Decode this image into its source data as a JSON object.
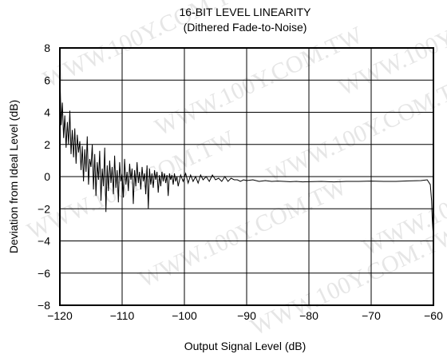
{
  "watermark": "WWW.100Y.COM.TW",
  "chart_data": {
    "type": "line",
    "title": "16-BIT LEVEL LINEARITY",
    "subtitle": "(Dithered Fade-to-Noise)",
    "xlabel": "Output Signal Level (dB)",
    "ylabel": "Deviation from Ideal Level (dB)",
    "xlim": [
      -120,
      -60
    ],
    "ylim": [
      -8,
      8
    ],
    "xticks": [
      -120,
      -110,
      -100,
      -90,
      -80,
      -70,
      -60
    ],
    "yticks": [
      -8,
      -6,
      -4,
      -2,
      0,
      2,
      4,
      6,
      8
    ],
    "xtick_labels": [
      "−120",
      "−110",
      "−100",
      "−90",
      "−80",
      "−70",
      "−60"
    ],
    "ytick_labels": [
      "−8",
      "−6",
      "−4",
      "−2",
      "0",
      "2",
      "4",
      "6",
      "8"
    ],
    "grid": true,
    "line_color": "#000000",
    "series": [
      {
        "x": [
          -120,
          -119.8,
          -119.6,
          -119.4,
          -119.2,
          -119,
          -118.8,
          -118.6,
          -118.4,
          -118.2,
          -118,
          -117.8,
          -117.6,
          -117.4,
          -117.2,
          -117,
          -116.8,
          -116.6,
          -116.4,
          -116.2,
          -116,
          -115.8,
          -115.6,
          -115.4,
          -115.2,
          -115,
          -114.8,
          -114.6,
          -114.4,
          -114.2,
          -114,
          -113.8,
          -113.6,
          -113.4,
          -113.2,
          -113,
          -112.8,
          -112.6,
          -112.4,
          -112.2,
          -112,
          -111.8,
          -111.6,
          -111.4,
          -111.2,
          -111,
          -110.8,
          -110.6,
          -110.4,
          -110.2,
          -110,
          -109.8,
          -109.6,
          -109.4,
          -109.2,
          -109,
          -108.8,
          -108.6,
          -108.4,
          -108.2,
          -108,
          -107.8,
          -107.6,
          -107.4,
          -107.2,
          -107,
          -106.8,
          -106.6,
          -106.4,
          -106.2,
          -106,
          -105.8,
          -105.6,
          -105.4,
          -105.2,
          -105,
          -104.8,
          -104.6,
          -104.4,
          -104.2,
          -104,
          -103.8,
          -103.6,
          -103.4,
          -103.2,
          -103,
          -102.8,
          -102.6,
          -102.4,
          -102.2,
          -102,
          -101.8,
          -101.6,
          -101.4,
          -101.2,
          -101,
          -100.6,
          -100.2,
          -99.8,
          -99.4,
          -99,
          -98.6,
          -98.2,
          -97.8,
          -97.4,
          -97,
          -96.5,
          -96,
          -95.5,
          -95,
          -94.5,
          -94,
          -93.5,
          -93,
          -92.5,
          -92,
          -91.5,
          -91,
          -90.5,
          -90,
          -89,
          -88,
          -87,
          -86,
          -85,
          -84,
          -83,
          -82,
          -81,
          -80,
          -78,
          -76,
          -74,
          -72,
          -70,
          -68,
          -66,
          -64,
          -62,
          -61,
          -60.5,
          -60.3,
          -60.2,
          -60.1,
          -60
        ],
        "y": [
          6.5,
          3.2,
          4.6,
          2.4,
          3.8,
          1.8,
          3.4,
          2.0,
          4.1,
          1.4,
          2.9,
          1.2,
          3.0,
          0.8,
          2.6,
          1.5,
          2.2,
          0.4,
          1.9,
          -0.3,
          1.7,
          0.3,
          2.5,
          -0.5,
          1.1,
          0.6,
          2.0,
          -0.8,
          1.4,
          -1.2,
          0.9,
          -0.2,
          1.6,
          -1.5,
          0.5,
          -0.6,
          1.8,
          -2.2,
          0.7,
          -0.9,
          1.0,
          -0.4,
          0.6,
          -1.1,
          1.3,
          -0.7,
          0.4,
          -1.6,
          0.9,
          -0.3,
          0.2,
          -1.3,
          1.1,
          -0.5,
          0.3,
          -0.9,
          0.8,
          -0.2,
          0.5,
          -1.7,
          0.4,
          -0.6,
          0.9,
          -0.4,
          0.3,
          -0.8,
          0.6,
          -0.3,
          0.2,
          -1.1,
          0.7,
          -2.0,
          0.5,
          -0.5,
          0.2,
          -0.7,
          0.4,
          -0.2,
          0.3,
          -1.0,
          0.1,
          -0.6,
          0.3,
          -0.3,
          0.2,
          -0.4,
          0.1,
          -1.2,
          0.2,
          -0.2,
          0.1,
          -0.5,
          0.2,
          -0.3,
          0.0,
          -0.6,
          0.1,
          -0.3,
          0.2,
          -0.4,
          0.1,
          -0.3,
          0.0,
          -0.4,
          0.1,
          -0.2,
          0.0,
          -0.3,
          0.1,
          -0.2,
          -0.1,
          -0.3,
          0.0,
          -0.3,
          -0.1,
          -0.2,
          -0.2,
          -0.3,
          -0.2,
          -0.25,
          -0.2,
          -0.3,
          -0.25,
          -0.3,
          -0.28,
          -0.3,
          -0.32,
          -0.3,
          -0.33,
          -0.32,
          -0.3,
          -0.33,
          -0.3,
          -0.3,
          -0.28,
          -0.3,
          -0.3,
          -0.27,
          -0.25,
          -0.2,
          -0.5,
          -1.5,
          -2.5,
          -3.2,
          -3.8
        ]
      }
    ]
  }
}
